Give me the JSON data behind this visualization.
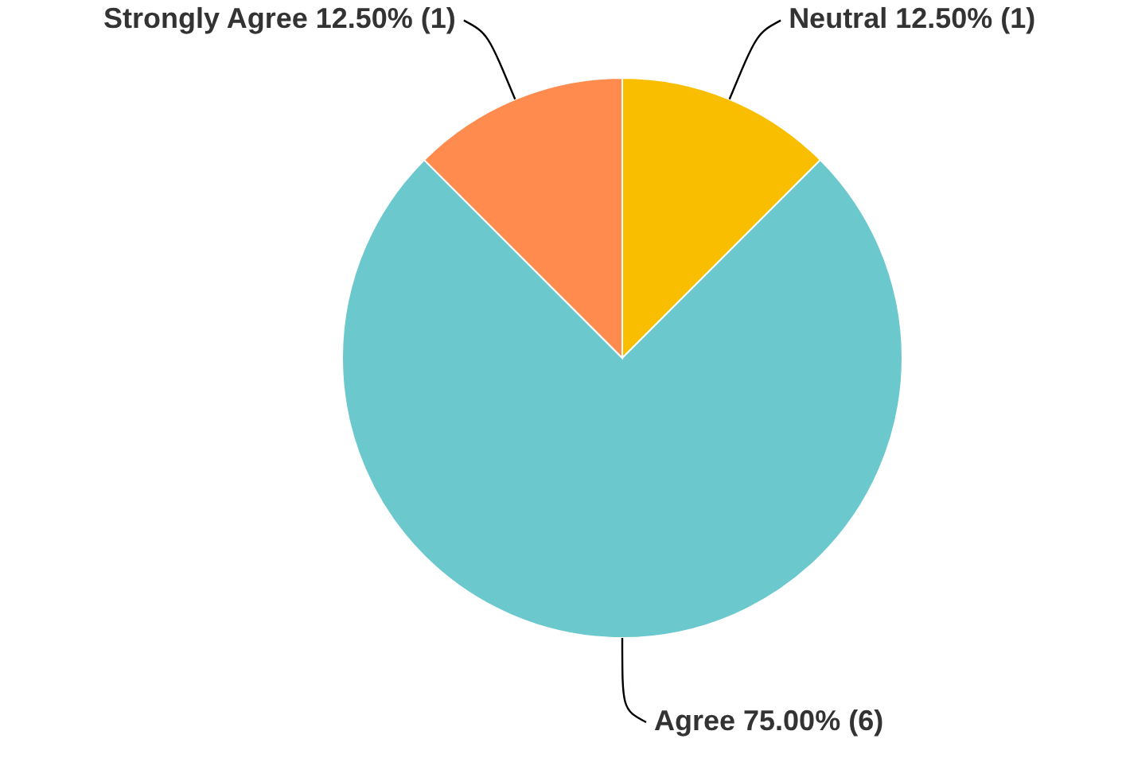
{
  "chart_data": {
    "type": "pie",
    "categories": [
      "Neutral",
      "Agree",
      "Strongly Agree"
    ],
    "values": [
      12.5,
      75,
      12.5
    ],
    "colors": [
      "#f9be00",
      "#6bc8cd",
      "#ff8b4f"
    ],
    "value_labels": [
      "12.50% (1)",
      "75.00% (6)",
      "12.50% (1)"
    ]
  }
}
